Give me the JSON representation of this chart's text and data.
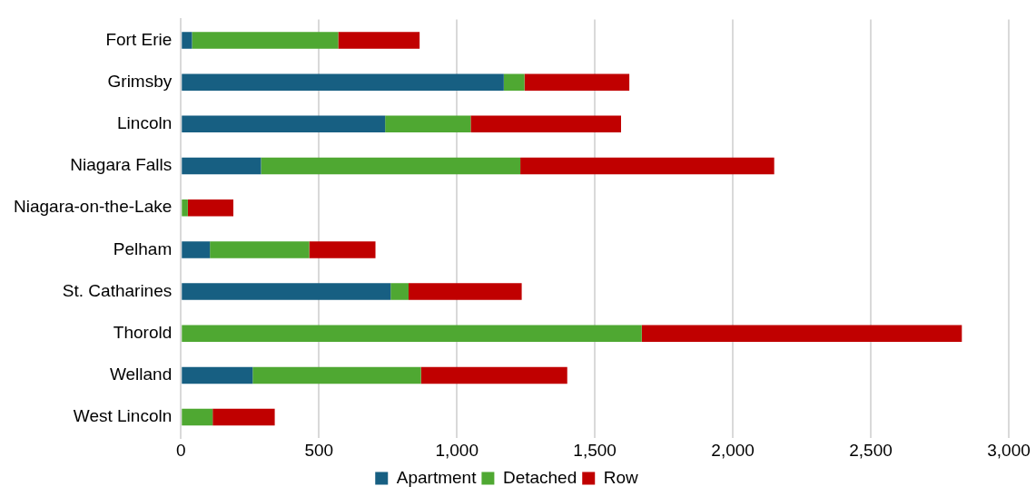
{
  "chart_data": {
    "type": "bar",
    "orientation": "horizontal",
    "stacked": true,
    "categories": [
      "Fort Erie",
      "Grimsby",
      "Lincoln",
      "Niagara Falls",
      "Niagara-on-the-Lake",
      "Pelham",
      "St. Catharines",
      "Thorold",
      "Welland",
      "West Lincoln"
    ],
    "series": [
      {
        "name": "Apartment",
        "color": "#175f82",
        "values": [
          40,
          1170,
          740,
          290,
          0,
          105,
          760,
          0,
          260,
          0
        ]
      },
      {
        "name": "Detached",
        "color": "#4fa832",
        "values": [
          530,
          75,
          310,
          940,
          25,
          360,
          65,
          1670,
          610,
          115
        ]
      },
      {
        "name": "Row",
        "color": "#c00000",
        "values": [
          295,
          380,
          545,
          920,
          165,
          240,
          410,
          1160,
          530,
          225
        ]
      }
    ],
    "xlim": [
      0,
      3000
    ],
    "xticks": [
      {
        "value": 0,
        "label": "0"
      },
      {
        "value": 500,
        "label": "500"
      },
      {
        "value": 1000,
        "label": "1,000"
      },
      {
        "value": 1500,
        "label": "1,500"
      },
      {
        "value": 2000,
        "label": "2,000"
      },
      {
        "value": 2500,
        "label": "2,500"
      },
      {
        "value": 3000,
        "label": "3,000"
      }
    ],
    "grid": "x",
    "legend": "bottom"
  }
}
